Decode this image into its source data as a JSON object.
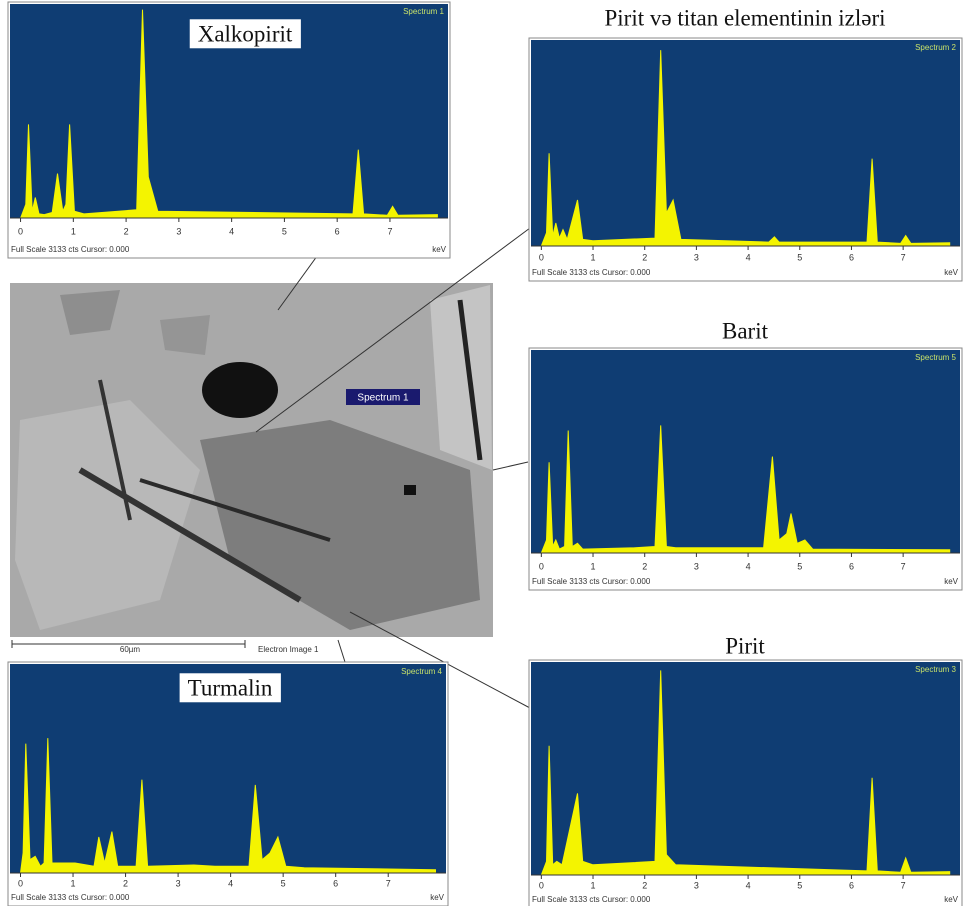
{
  "chart_data": [
    {
      "type": "area",
      "title": "Xalkopirit",
      "spectrum_label": "Spectrum 1",
      "footer": "Full Scale 3133 cts Cursor: 0.000",
      "xlabel": "keV",
      "color": "#f4f400",
      "x": [
        0,
        0.1,
        0.15,
        0.22,
        0.28,
        0.35,
        0.45,
        0.6,
        0.7,
        0.8,
        0.86,
        0.93,
        1.02,
        1.2,
        2.2,
        2.31,
        2.42,
        2.6,
        6.3,
        6.4,
        6.5,
        6.95,
        7.05,
        7.15,
        7.9
      ],
      "y": [
        0,
        200,
        1370,
        100,
        300,
        60,
        50,
        80,
        650,
        100,
        200,
        1370,
        100,
        60,
        120,
        3050,
        600,
        100,
        60,
        1000,
        60,
        40,
        170,
        40,
        50
      ],
      "xlim": [
        -0.2,
        8.1
      ],
      "ylim": [
        0,
        3133
      ],
      "xticks": [
        0,
        1,
        2,
        3,
        4,
        5,
        6,
        7
      ]
    },
    {
      "type": "area",
      "title": "Pirit və titan elementinin izləri",
      "spectrum_label": "Spectrum 2",
      "footer": "Full Scale 3133 cts Cursor: 0.000",
      "xlabel": "keV",
      "color": "#f4f400",
      "x": [
        0,
        0.1,
        0.15,
        0.22,
        0.28,
        0.35,
        0.42,
        0.5,
        0.7,
        0.8,
        1.0,
        2.2,
        2.31,
        2.42,
        2.55,
        2.7,
        4.4,
        4.51,
        4.6,
        6.3,
        6.4,
        6.5,
        6.95,
        7.05,
        7.15,
        7.9
      ],
      "y": [
        0,
        200,
        1410,
        150,
        350,
        120,
        250,
        100,
        700,
        100,
        80,
        120,
        2980,
        500,
        700,
        100,
        60,
        140,
        60,
        60,
        1330,
        60,
        40,
        160,
        40,
        50
      ],
      "xlim": [
        -0.2,
        8.1
      ],
      "ylim": [
        0,
        3133
      ],
      "xticks": [
        0,
        1,
        2,
        3,
        4,
        5,
        6,
        7
      ]
    },
    {
      "type": "area",
      "title": "Barit",
      "spectrum_label": "Spectrum 5",
      "footer": "Full Scale 3133 cts Cursor: 0.000",
      "xlabel": "keV",
      "color": "#f4f400",
      "x": [
        0,
        0.1,
        0.15,
        0.22,
        0.28,
        0.35,
        0.45,
        0.52,
        0.6,
        0.7,
        0.8,
        1.8,
        2.2,
        2.31,
        2.42,
        2.6,
        4.3,
        4.47,
        4.6,
        4.75,
        4.83,
        4.95,
        5.1,
        5.25,
        7.9
      ],
      "y": [
        0,
        200,
        1400,
        100,
        200,
        60,
        100,
        1890,
        100,
        150,
        60,
        80,
        100,
        1970,
        100,
        80,
        80,
        1490,
        200,
        300,
        610,
        150,
        200,
        60,
        50
      ],
      "xlim": [
        -0.2,
        8.1
      ],
      "ylim": [
        0,
        3133
      ],
      "xticks": [
        0,
        1,
        2,
        3,
        4,
        5,
        6,
        7
      ]
    },
    {
      "type": "area",
      "title": "Turmalin",
      "spectrum_label": "Spectrum 4",
      "footer": "Full Scale 3133 cts Cursor: 0.000",
      "xlabel": "keV",
      "color": "#f4f400",
      "x": [
        0,
        0.05,
        0.1,
        0.18,
        0.28,
        0.38,
        0.45,
        0.52,
        0.6,
        0.75,
        1.04,
        1.4,
        1.49,
        1.6,
        1.74,
        1.85,
        2.2,
        2.31,
        2.42,
        3.3,
        3.7,
        4.35,
        4.47,
        4.6,
        4.75,
        4.9,
        5.05,
        5.4,
        7.9
      ],
      "y": [
        0,
        300,
        1940,
        200,
        250,
        100,
        150,
        2020,
        150,
        150,
        150,
        100,
        540,
        150,
        620,
        100,
        100,
        1400,
        100,
        120,
        100,
        100,
        1320,
        200,
        300,
        540,
        100,
        80,
        50
      ],
      "xlim": [
        -0.2,
        8.1
      ],
      "ylim": [
        0,
        3133
      ],
      "xticks": [
        0,
        1,
        2,
        3,
        4,
        5,
        6,
        7
      ]
    },
    {
      "type": "area",
      "title": "Pirit",
      "spectrum_label": "Spectrum 3",
      "footer": "Full Scale 3133 cts Cursor: 0.000",
      "xlabel": "keV",
      "color": "#f4f400",
      "x": [
        0,
        0.1,
        0.15,
        0.22,
        0.3,
        0.4,
        0.7,
        0.8,
        1.0,
        2.2,
        2.31,
        2.42,
        2.6,
        6.3,
        6.4,
        6.5,
        6.95,
        7.05,
        7.15,
        7.9
      ],
      "y": [
        0,
        200,
        1900,
        150,
        200,
        150,
        1200,
        200,
        150,
        200,
        3010,
        300,
        150,
        60,
        1430,
        60,
        40,
        250,
        40,
        50
      ],
      "xlim": [
        -0.2,
        8.1
      ],
      "ylim": [
        0,
        3133
      ],
      "xticks": [
        0,
        1,
        2,
        3,
        4,
        5,
        6,
        7
      ]
    }
  ],
  "image": {
    "label": "Spectrum 1",
    "scale": "60µm",
    "caption": "Electron Image 1"
  }
}
